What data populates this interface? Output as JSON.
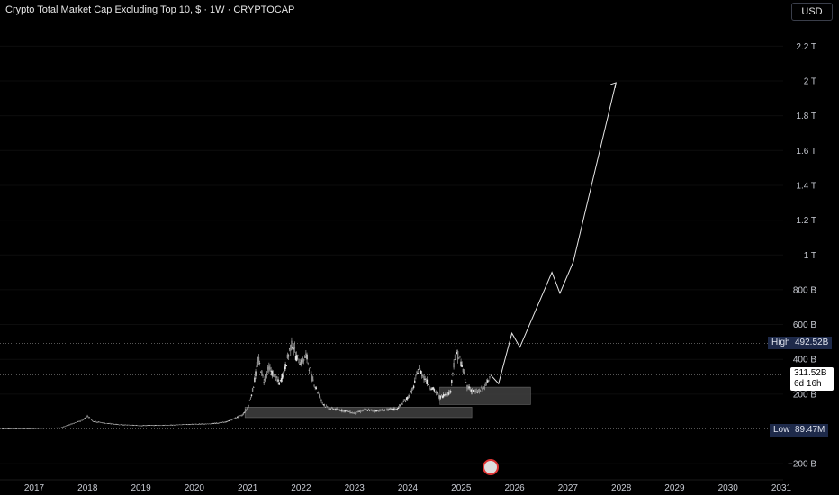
{
  "title": "Crypto Total Market Cap Excluding Top 10, $ · 1W · CRYPTOCAP",
  "currency_button": "USD",
  "high_label": "High",
  "high_value": "492.52B",
  "low_label": "Low",
  "low_value": "89.47M",
  "current_price": "311.52B",
  "countdown": "6d 16h",
  "chart_data": {
    "type": "line",
    "title": "Crypto Total Market Cap Excluding Top 10, $ · 1W · CRYPTOCAP",
    "y_ticks": [
      "2.2 T",
      "2 T",
      "1.8 T",
      "1.6 T",
      "1.4 T",
      "1.2 T",
      "1 T",
      "800 B",
      "600 B",
      "400 B",
      "200 B",
      "−200 B"
    ],
    "y_tick_values": [
      2200,
      2000,
      1800,
      1600,
      1400,
      1200,
      1000,
      800,
      600,
      400,
      200,
      -200
    ],
    "x_ticks": [
      "2017",
      "2018",
      "2019",
      "2020",
      "2021",
      "2022",
      "2023",
      "2024",
      "2025",
      "2026",
      "2027",
      "2028",
      "2029",
      "2030",
      "2031"
    ],
    "x_tick_values": [
      2017,
      2018,
      2019,
      2020,
      2021,
      2022,
      2023,
      2024,
      2025,
      2026,
      2027,
      2028,
      2029,
      2030,
      2031
    ],
    "ylim": [
      -240,
      2300
    ],
    "xlim": [
      2016.4,
      2031.2
    ],
    "unit": "billions USD",
    "series": [
      {
        "name": "",
        "x": [
          2016.4,
          2017.0,
          2017.5,
          2017.9,
          2018.0,
          2018.1,
          2018.3,
          2018.6,
          2019.0,
          2019.5,
          2020.0,
          2020.3,
          2020.6,
          2020.9,
          2021.0,
          2021.1,
          2021.2,
          2021.3,
          2021.4,
          2021.5,
          2021.6,
          2021.7,
          2021.8,
          2021.85,
          2021.9,
          2022.0,
          2022.1,
          2022.2,
          2022.3,
          2022.4,
          2022.5,
          2022.7,
          2022.9,
          2023.0,
          2023.2,
          2023.4,
          2023.6,
          2023.8,
          2024.0,
          2024.1,
          2024.2,
          2024.3,
          2024.4,
          2024.5,
          2024.6,
          2024.7,
          2024.8,
          2024.85,
          2024.9,
          2025.0,
          2025.1,
          2025.2,
          2025.3,
          2025.4,
          2025.5,
          2025.55
        ],
        "values": [
          2,
          3,
          8,
          50,
          75,
          45,
          35,
          25,
          20,
          22,
          28,
          30,
          40,
          80,
          120,
          230,
          400,
          280,
          350,
          300,
          260,
          350,
          470,
          490,
          420,
          380,
          420,
          300,
          220,
          150,
          120,
          110,
          100,
          90,
          110,
          105,
          110,
          115,
          180,
          230,
          350,
          300,
          250,
          220,
          180,
          200,
          210,
          350,
          450,
          380,
          250,
          220,
          210,
          230,
          270,
          311
        ]
      },
      {
        "name": "",
        "x": [
          2025.55,
          2025.7,
          2025.95,
          2026.1,
          2026.7,
          2026.85,
          2027.1,
          2027.9
        ],
        "values": [
          311,
          260,
          550,
          470,
          900,
          780,
          960,
          1990
        ]
      }
    ],
    "zones": [
      {
        "x0": 2024.6,
        "x1": 2026.3,
        "y0": 140,
        "y1": 240
      },
      {
        "x0": 2020.95,
        "x1": 2025.2,
        "y0": 65,
        "y1": 125
      }
    ],
    "reference_lines": [
      492.52,
      311.52,
      0.09
    ]
  }
}
